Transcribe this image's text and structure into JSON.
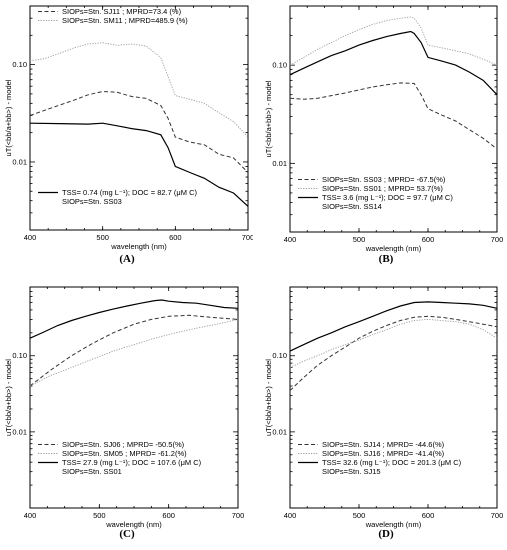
{
  "chart_data": [
    {
      "type": "line",
      "panel_label": "(A)",
      "xlabel": "wavelength (nm)",
      "ylabel": "uT(<bb/a+bb>) - model",
      "xlim": [
        400,
        700
      ],
      "ylim": [
        0.002,
        0.4
      ],
      "yscale": "log",
      "x_ticks": [
        400,
        500,
        600,
        700
      ],
      "y_ticks": [
        {
          "v": 0.01,
          "label": "0.01"
        },
        {
          "v": 0.1,
          "label": "0.10"
        }
      ],
      "legend_top": [
        {
          "text": "SIOPs=Stn. SJ11 ; MPRD=73.4 (%)",
          "style": "dashed",
          "color": "#333333"
        },
        {
          "text": "SIOPs=Stn. SM11 ; MPRD=485.9 (%)",
          "style": "dotted",
          "color": "#999999"
        }
      ],
      "legend_bottom": [
        {
          "text": "TSS= 0.74 (mg L⁻¹); DOC = 82.7 (μM C)",
          "style": "solid",
          "color": "#000000"
        },
        {
          "text": "SIOPs=Stn. SS03",
          "style": "none",
          "color": "#000000"
        }
      ],
      "series": [
        {
          "style": "dashed",
          "color": "#333333",
          "x": [
            400,
            430,
            460,
            480,
            500,
            520,
            540,
            560,
            580,
            590,
            600,
            620,
            640,
            660,
            680,
            700
          ],
          "y": [
            0.03,
            0.036,
            0.043,
            0.049,
            0.053,
            0.052,
            0.047,
            0.045,
            0.038,
            0.028,
            0.018,
            0.016,
            0.015,
            0.012,
            0.011,
            0.0078
          ]
        },
        {
          "style": "dotted",
          "color": "#999999",
          "x": [
            400,
            420,
            440,
            460,
            480,
            500,
            520,
            540,
            560,
            580,
            590,
            600,
            620,
            640,
            660,
            680,
            700
          ],
          "y": [
            0.11,
            0.115,
            0.13,
            0.148,
            0.163,
            0.168,
            0.158,
            0.163,
            0.155,
            0.118,
            0.075,
            0.048,
            0.044,
            0.04,
            0.032,
            0.026,
            0.018
          ]
        },
        {
          "style": "solid",
          "color": "#000000",
          "x": [
            400,
            440,
            480,
            500,
            520,
            540,
            560,
            580,
            590,
            600,
            620,
            640,
            660,
            680,
            700
          ],
          "y": [
            0.025,
            0.0248,
            0.0245,
            0.025,
            0.0235,
            0.022,
            0.021,
            0.019,
            0.014,
            0.009,
            0.0078,
            0.0068,
            0.0055,
            0.0048,
            0.0035
          ]
        }
      ]
    },
    {
      "type": "line",
      "panel_label": "(B)",
      "xlabel": "wavelength (nm)",
      "ylabel": "uT(<bb/a+bb>) - model",
      "xlim": [
        400,
        700
      ],
      "ylim": [
        0.002,
        0.4
      ],
      "yscale": "log",
      "x_ticks": [
        400,
        500,
        600,
        700
      ],
      "y_ticks": [
        {
          "v": 0.01,
          "label": "0.01"
        },
        {
          "v": 0.1,
          "label": "0.10"
        }
      ],
      "legend_top": [],
      "legend_bottom": [
        {
          "text": "SIOPs=Stn. SS03 ; MPRD=  -67.5(%)",
          "style": "dashed",
          "color": "#333333"
        },
        {
          "text": "SIOPs=Stn. SS01 ; MPRD=  53.7(%)",
          "style": "dotted",
          "color": "#999999"
        },
        {
          "text": "TSS=  3.6 (mg L⁻¹); DOC =  97.7 (μM C)",
          "style": "solid",
          "color": "#000000"
        },
        {
          "text": "SIOPs=Stn. SS14",
          "style": "none",
          "color": "#000000"
        }
      ],
      "series": [
        {
          "style": "dashed",
          "color": "#333333",
          "x": [
            400,
            420,
            440,
            460,
            480,
            500,
            520,
            540,
            560,
            580,
            590,
            600,
            620,
            640,
            660,
            680,
            700
          ],
          "y": [
            0.046,
            0.045,
            0.046,
            0.049,
            0.052,
            0.056,
            0.06,
            0.063,
            0.066,
            0.065,
            0.05,
            0.036,
            0.031,
            0.027,
            0.022,
            0.018,
            0.014
          ]
        },
        {
          "style": "dotted",
          "color": "#999999",
          "x": [
            400,
            420,
            440,
            460,
            480,
            500,
            520,
            540,
            560,
            575,
            580,
            590,
            600,
            620,
            640,
            660,
            680,
            700
          ],
          "y": [
            0.1,
            0.12,
            0.145,
            0.17,
            0.2,
            0.23,
            0.26,
            0.285,
            0.3,
            0.31,
            0.3,
            0.24,
            0.16,
            0.15,
            0.14,
            0.13,
            0.115,
            0.1
          ]
        },
        {
          "style": "solid",
          "color": "#000000",
          "x": [
            400,
            420,
            440,
            460,
            480,
            500,
            520,
            540,
            560,
            575,
            580,
            590,
            600,
            620,
            640,
            660,
            680,
            700
          ],
          "y": [
            0.08,
            0.093,
            0.108,
            0.125,
            0.14,
            0.16,
            0.178,
            0.195,
            0.21,
            0.22,
            0.21,
            0.17,
            0.12,
            0.11,
            0.1,
            0.085,
            0.07,
            0.05
          ]
        }
      ]
    },
    {
      "type": "line",
      "panel_label": "(C)",
      "xlabel": "wavelength (nm)",
      "ylabel": "uT(<bb/a+bb>) - model",
      "xlim": [
        400,
        700
      ],
      "ylim": [
        0.001,
        0.8
      ],
      "yscale": "log",
      "x_ticks": [
        400,
        500,
        600,
        700
      ],
      "y_ticks": [
        {
          "v": 0.01,
          "label": "0.01"
        },
        {
          "v": 0.1,
          "label": "0.10"
        }
      ],
      "legend_top": [],
      "legend_bottom": [
        {
          "text": "SIOPs=Stn. SJ06 ; MPRD=  -50.5(%)",
          "style": "dashed",
          "color": "#333333"
        },
        {
          "text": "SIOPs=Stn. SM05 ; MPRD=  -61.2(%)",
          "style": "dotted",
          "color": "#999999"
        },
        {
          "text": "TSS= 27.9 (mg L⁻¹); DOC = 107.6 (μM C)",
          "style": "solid",
          "color": "#000000"
        },
        {
          "text": "SIOPs=Stn. SS01",
          "style": "none",
          "color": "#000000"
        }
      ],
      "series": [
        {
          "style": "dashed",
          "color": "#333333",
          "x": [
            400,
            430,
            460,
            490,
            520,
            550,
            575,
            600,
            630,
            660,
            700
          ],
          "y": [
            0.04,
            0.065,
            0.1,
            0.145,
            0.2,
            0.26,
            0.3,
            0.33,
            0.34,
            0.32,
            0.3
          ]
        },
        {
          "style": "dotted",
          "color": "#999999",
          "x": [
            400,
            430,
            460,
            490,
            520,
            550,
            580,
            610,
            640,
            670,
            700
          ],
          "y": [
            0.04,
            0.055,
            0.07,
            0.09,
            0.115,
            0.14,
            0.17,
            0.2,
            0.23,
            0.26,
            0.3
          ]
        },
        {
          "style": "solid",
          "color": "#000000",
          "x": [
            400,
            420,
            440,
            460,
            480,
            500,
            520,
            540,
            560,
            580,
            590,
            600,
            620,
            640,
            660,
            680,
            700
          ],
          "y": [
            0.17,
            0.205,
            0.25,
            0.29,
            0.33,
            0.37,
            0.41,
            0.45,
            0.49,
            0.53,
            0.54,
            0.52,
            0.5,
            0.49,
            0.46,
            0.43,
            0.42
          ]
        }
      ]
    },
    {
      "type": "line",
      "panel_label": "(D)",
      "xlabel": "wavelength (nm)",
      "ylabel": "uT(<bb/a+bb>) - model",
      "xlim": [
        400,
        700
      ],
      "ylim": [
        0.001,
        0.8
      ],
      "yscale": "log",
      "x_ticks": [
        400,
        500,
        600,
        700
      ],
      "y_ticks": [
        {
          "v": 0.01,
          "label": "0.01"
        },
        {
          "v": 0.1,
          "label": "0.10"
        }
      ],
      "legend_top": [],
      "legend_bottom": [
        {
          "text": "SIOPs=Stn. SJ14 ; MPRD=  -44.6(%)",
          "style": "dashed",
          "color": "#333333"
        },
        {
          "text": "SIOPs=Stn. SJ16 ; MPRD=  -41.4(%)",
          "style": "dotted",
          "color": "#999999"
        },
        {
          "text": "TSS= 32.6 (mg L⁻¹); DOC = 201.3 (μM C)",
          "style": "solid",
          "color": "#000000"
        },
        {
          "text": "SIOPs=Stn. SJ15",
          "style": "none",
          "color": "#000000"
        }
      ],
      "series": [
        {
          "style": "dashed",
          "color": "#333333",
          "x": [
            400,
            420,
            440,
            460,
            480,
            500,
            520,
            540,
            560,
            580,
            600,
            620,
            640,
            660,
            680,
            700
          ],
          "y": [
            0.035,
            0.052,
            0.075,
            0.1,
            0.13,
            0.17,
            0.21,
            0.25,
            0.29,
            0.32,
            0.33,
            0.32,
            0.3,
            0.28,
            0.26,
            0.24
          ]
        },
        {
          "style": "dotted",
          "color": "#999999",
          "x": [
            400,
            420,
            440,
            460,
            480,
            500,
            520,
            540,
            560,
            580,
            600,
            620,
            640,
            660,
            680,
            700
          ],
          "y": [
            0.07,
            0.085,
            0.1,
            0.12,
            0.14,
            0.16,
            0.19,
            0.22,
            0.26,
            0.29,
            0.3,
            0.29,
            0.28,
            0.26,
            0.22,
            0.17
          ]
        },
        {
          "style": "solid",
          "color": "#000000",
          "x": [
            400,
            420,
            440,
            460,
            480,
            500,
            520,
            540,
            560,
            580,
            600,
            620,
            640,
            660,
            680,
            700
          ],
          "y": [
            0.115,
            0.14,
            0.17,
            0.2,
            0.24,
            0.28,
            0.33,
            0.39,
            0.45,
            0.5,
            0.51,
            0.5,
            0.49,
            0.48,
            0.46,
            0.42
          ]
        }
      ]
    }
  ]
}
